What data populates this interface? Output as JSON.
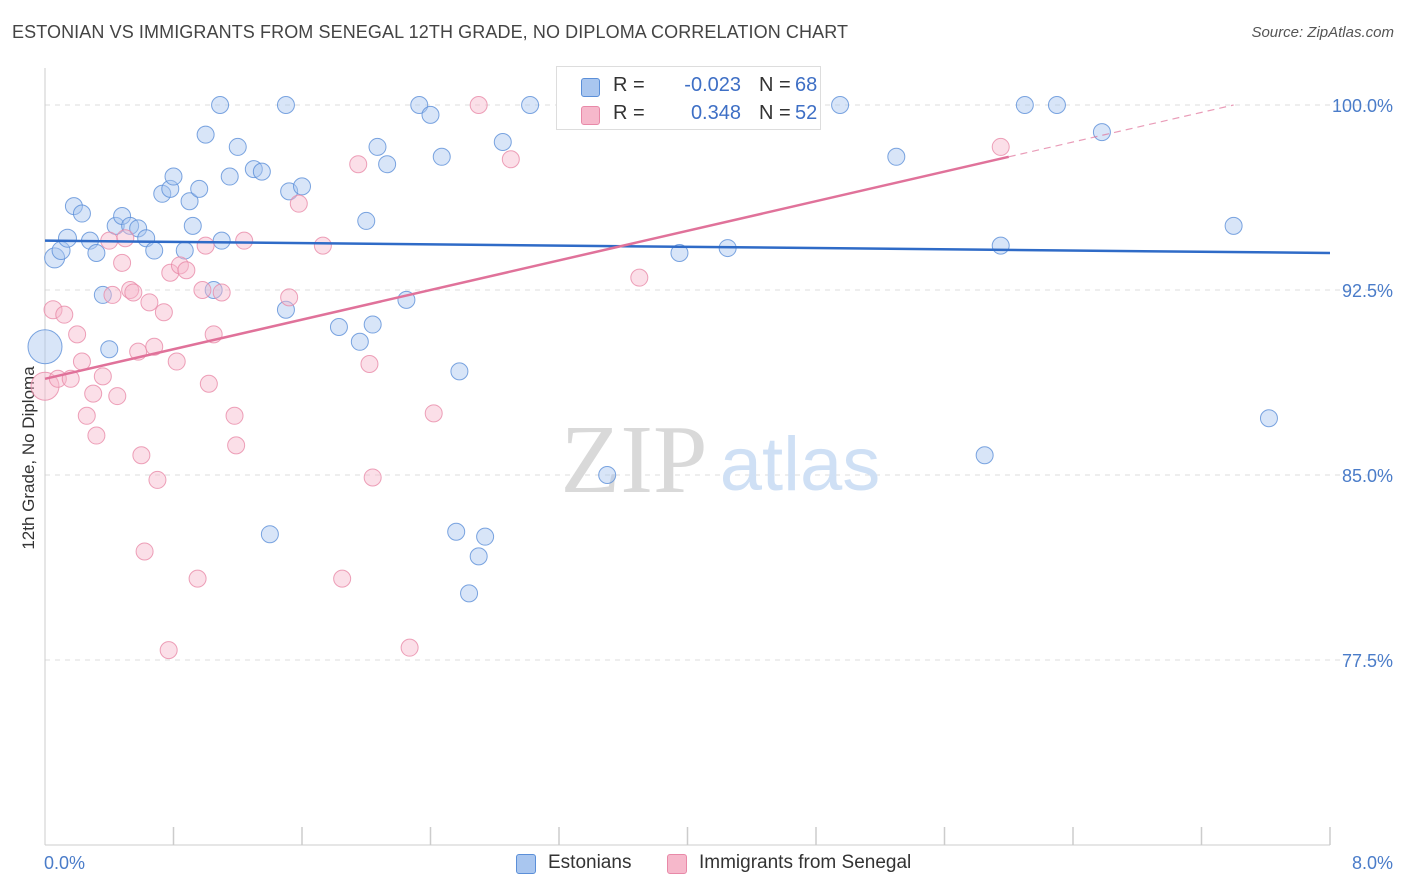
{
  "title": "ESTONIAN VS IMMIGRANTS FROM SENEGAL 12TH GRADE, NO DIPLOMA CORRELATION CHART",
  "source": "Source: ZipAtlas.com",
  "watermark": {
    "zip": "ZIP",
    "atlas": "atlas"
  },
  "legend": {
    "r_label": "R =",
    "n_label": "N =",
    "rows": [
      {
        "r": "-0.023",
        "n": "68"
      },
      {
        "r": "0.348",
        "n": "52"
      }
    ]
  },
  "colors": {
    "estonians_fill": "#a9c6ef",
    "estonians_stroke": "#5b8fd8",
    "estonians_line": "#2f6bc7",
    "senegal_fill": "#f6b8cb",
    "senegal_stroke": "#e889a8",
    "senegal_line": "#e0729a",
    "axis_text": "#4a7cc9",
    "grid": "#dddddd"
  },
  "chart_data": {
    "type": "scatter",
    "title": "ESTONIAN VS IMMIGRANTS FROM SENEGAL 12TH GRADE, NO DIPLOMA CORRELATION CHART",
    "xlabel": "",
    "ylabel": "12th Grade, No Diploma",
    "xlim": [
      0,
      8
    ],
    "ylim": [
      70.0,
      101.5
    ],
    "x_tick_labels": [
      "0.0%",
      "8.0%"
    ],
    "y_ticks": [
      77.5,
      85.0,
      92.5,
      100.0
    ],
    "y_tick_labels": [
      "77.5%",
      "85.0%",
      "92.5%",
      "100.0%"
    ],
    "grid": true,
    "legend_position": "bottom",
    "series": [
      {
        "name": "Estonians",
        "r": -0.023,
        "n": 68,
        "trend": {
          "x": [
            0.0,
            8.0
          ],
          "y": [
            94.5,
            94.0
          ]
        },
        "points": [
          [
            0.0,
            90.2,
            34
          ],
          [
            0.06,
            93.8,
            20
          ],
          [
            0.1,
            94.1,
            18
          ],
          [
            0.14,
            94.6,
            18
          ],
          [
            0.18,
            95.9,
            17
          ],
          [
            0.23,
            95.6,
            17
          ],
          [
            0.28,
            94.5,
            17
          ],
          [
            0.32,
            94.0,
            17
          ],
          [
            0.36,
            92.3,
            17
          ],
          [
            0.4,
            90.1,
            17
          ],
          [
            0.44,
            95.1,
            17
          ],
          [
            0.48,
            95.5,
            17
          ],
          [
            0.53,
            95.1,
            17
          ],
          [
            0.58,
            95.0,
            17
          ],
          [
            0.63,
            94.6,
            17
          ],
          [
            0.68,
            94.1,
            17
          ],
          [
            0.73,
            96.4,
            17
          ],
          [
            0.78,
            96.6,
            17
          ],
          [
            0.8,
            97.1,
            17
          ],
          [
            0.87,
            94.1,
            17
          ],
          [
            0.9,
            96.1,
            17
          ],
          [
            0.92,
            95.1,
            17
          ],
          [
            0.96,
            96.6,
            17
          ],
          [
            1.0,
            98.8,
            17
          ],
          [
            1.05,
            92.5,
            17
          ],
          [
            1.1,
            94.5,
            17
          ],
          [
            1.15,
            97.1,
            17
          ],
          [
            1.2,
            98.3,
            17
          ],
          [
            1.09,
            100.0,
            17
          ],
          [
            1.3,
            97.4,
            17
          ],
          [
            1.35,
            97.3,
            17
          ],
          [
            1.5,
            100.0,
            17
          ],
          [
            1.52,
            96.5,
            17
          ],
          [
            1.6,
            96.7,
            17
          ],
          [
            1.5,
            91.7,
            17
          ],
          [
            1.4,
            82.6,
            17
          ],
          [
            1.83,
            91.0,
            17
          ],
          [
            1.96,
            90.4,
            17
          ],
          [
            2.0,
            95.3,
            17
          ],
          [
            2.04,
            91.1,
            17
          ],
          [
            2.07,
            98.3,
            17
          ],
          [
            2.13,
            97.6,
            17
          ],
          [
            2.25,
            92.1,
            17
          ],
          [
            2.33,
            100.0,
            17
          ],
          [
            2.4,
            99.6,
            17
          ],
          [
            2.47,
            97.9,
            17
          ],
          [
            2.56,
            82.7,
            17
          ],
          [
            2.58,
            89.2,
            17
          ],
          [
            2.64,
            80.2,
            17
          ],
          [
            2.7,
            81.7,
            17
          ],
          [
            2.74,
            82.5,
            17
          ],
          [
            2.85,
            98.5,
            17
          ],
          [
            3.02,
            100.0,
            17
          ],
          [
            3.52,
            100.0,
            17
          ],
          [
            3.5,
            85.0,
            17
          ],
          [
            3.95,
            94.0,
            17
          ],
          [
            4.25,
            94.2,
            17
          ],
          [
            4.95,
            100.0,
            17
          ],
          [
            5.3,
            97.9,
            17
          ],
          [
            5.85,
            85.8,
            17
          ],
          [
            5.95,
            94.3,
            17
          ],
          [
            6.1,
            100.0,
            17
          ],
          [
            6.3,
            100.0,
            17
          ],
          [
            6.58,
            98.9,
            17
          ],
          [
            7.4,
            95.1,
            17
          ],
          [
            7.62,
            87.3,
            17
          ],
          [
            0.9,
            89.0,
            0
          ],
          [
            1.0,
            89.0,
            0
          ]
        ]
      },
      {
        "name": "Immigrants from Senegal",
        "r": 0.348,
        "n": 52,
        "trend": {
          "x": [
            0.0,
            6.0
          ],
          "y": [
            88.9,
            97.9
          ]
        },
        "trend_extension": {
          "x": [
            6.0,
            7.4
          ],
          "y": [
            97.9,
            100.0
          ]
        },
        "points": [
          [
            0.0,
            88.6,
            28
          ],
          [
            0.05,
            91.7,
            18
          ],
          [
            0.08,
            88.9,
            17
          ],
          [
            0.12,
            91.5,
            17
          ],
          [
            0.16,
            88.9,
            17
          ],
          [
            0.2,
            90.7,
            17
          ],
          [
            0.23,
            89.6,
            17
          ],
          [
            0.26,
            87.4,
            17
          ],
          [
            0.3,
            88.3,
            17
          ],
          [
            0.32,
            86.6,
            17
          ],
          [
            0.36,
            89.0,
            17
          ],
          [
            0.4,
            94.5,
            17
          ],
          [
            0.42,
            92.3,
            17
          ],
          [
            0.45,
            88.2,
            17
          ],
          [
            0.48,
            93.6,
            17
          ],
          [
            0.5,
            94.6,
            17
          ],
          [
            0.53,
            92.5,
            17
          ],
          [
            0.55,
            92.4,
            17
          ],
          [
            0.58,
            90.0,
            17
          ],
          [
            0.6,
            85.8,
            17
          ],
          [
            0.62,
            81.9,
            17
          ],
          [
            0.65,
            92.0,
            17
          ],
          [
            0.68,
            90.2,
            17
          ],
          [
            0.7,
            84.8,
            17
          ],
          [
            0.74,
            91.6,
            17
          ],
          [
            0.77,
            77.9,
            17
          ],
          [
            0.78,
            93.2,
            17
          ],
          [
            0.82,
            89.6,
            17
          ],
          [
            0.84,
            93.5,
            17
          ],
          [
            0.88,
            93.3,
            17
          ],
          [
            0.95,
            80.8,
            17
          ],
          [
            0.98,
            92.5,
            17
          ],
          [
            1.0,
            94.3,
            17
          ],
          [
            1.02,
            88.7,
            17
          ],
          [
            1.05,
            90.7,
            17
          ],
          [
            1.1,
            92.4,
            17
          ],
          [
            1.18,
            87.4,
            17
          ],
          [
            1.19,
            86.2,
            17
          ],
          [
            1.24,
            94.5,
            17
          ],
          [
            1.52,
            92.2,
            17
          ],
          [
            1.58,
            96.0,
            17
          ],
          [
            1.73,
            94.3,
            17
          ],
          [
            1.85,
            80.8,
            17
          ],
          [
            1.95,
            97.6,
            17
          ],
          [
            2.02,
            89.5,
            17
          ],
          [
            2.04,
            84.9,
            17
          ],
          [
            2.27,
            78.0,
            17
          ],
          [
            2.42,
            87.5,
            17
          ],
          [
            2.7,
            100.0,
            17
          ],
          [
            2.9,
            97.8,
            17
          ],
          [
            3.7,
            93.0,
            17
          ],
          [
            5.95,
            98.3,
            17
          ]
        ]
      }
    ]
  },
  "bottom_legend": {
    "items": [
      {
        "label": "Estonians"
      },
      {
        "label": "Immigrants from Senegal"
      }
    ]
  }
}
